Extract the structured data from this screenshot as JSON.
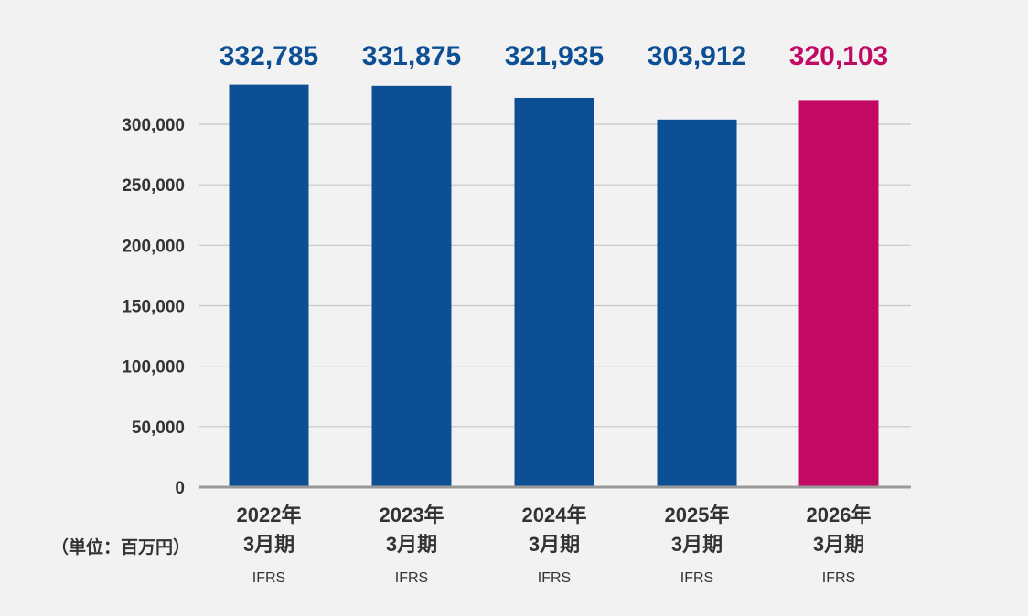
{
  "chart_data": {
    "type": "bar",
    "categories": [
      {
        "year": "2022年",
        "period": "3月期",
        "standard": "IFRS"
      },
      {
        "year": "2023年",
        "period": "3月期",
        "standard": "IFRS"
      },
      {
        "year": "2024年",
        "period": "3月期",
        "standard": "IFRS"
      },
      {
        "year": "2025年",
        "period": "3月期",
        "standard": "IFRS"
      },
      {
        "year": "2026年",
        "period": "3月期",
        "standard": "IFRS"
      }
    ],
    "values": [
      332785,
      331875,
      321935,
      303912,
      320103
    ],
    "value_labels": [
      "332,785",
      "331,875",
      "321,935",
      "303,912",
      "320,103"
    ],
    "bar_colors": [
      "#0d4f95",
      "#0d4f95",
      "#0d4f95",
      "#0d4f95",
      "#c20a64"
    ],
    "label_colors": [
      "#0d4f95",
      "#0d4f95",
      "#0d4f95",
      "#0d4f95",
      "#c20a64"
    ],
    "yticks": [
      0,
      50000,
      100000,
      150000,
      200000,
      250000,
      300000
    ],
    "ytick_labels": [
      "0",
      "50,000",
      "100,000",
      "150,000",
      "200,000",
      "250,000",
      "300,000"
    ],
    "ylim": [
      0,
      300000
    ],
    "grid": true,
    "unit_label": "（単位：百万円）",
    "title": "",
    "xlabel": "",
    "ylabel": ""
  },
  "colors": {
    "grid": "#c6c6c6",
    "axis": "#999999",
    "background": "#f2f2f2"
  }
}
